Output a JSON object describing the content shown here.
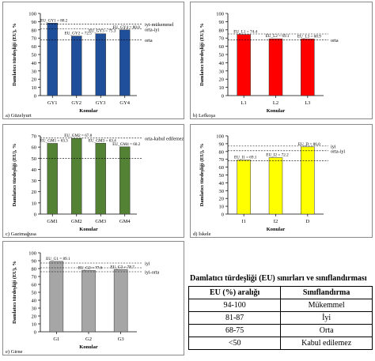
{
  "chart_data": [
    {
      "type": "bar",
      "panel_label": "a) Güzelyurt",
      "xlabel": "Konular",
      "ylabel": "Damlatıcı türdeşliği (EU),  %",
      "ylim": [
        0,
        100
      ],
      "yticks": [
        "0",
        "10",
        "20",
        "30",
        "40",
        "50",
        "60",
        "70",
        "80",
        "90",
        "100"
      ],
      "categories": [
        "GY1",
        "GY2",
        "GY3",
        "GY4"
      ],
      "values": [
        88.2,
        72.5,
        75.3,
        80.0
      ],
      "bar_color": "#1f4e9a",
      "value_labels": [
        "EU_GY1 = 88.2",
        "EU_GY2 = 72.5",
        "EU_GY3 = 75.3",
        "EU_GY4 = 80.0"
      ],
      "reference_lines": [
        {
          "value": 87,
          "label": "iyi-mükemmel"
        },
        {
          "value": 81,
          "label": "orta-iyi"
        },
        {
          "value": 68,
          "label": "orta"
        }
      ]
    },
    {
      "type": "bar",
      "panel_label": "b) Lefkoşa",
      "xlabel": "Konular",
      "ylabel": "Damlatıcı türdeşliği (EU),  %",
      "ylim": [
        0,
        100
      ],
      "yticks": [
        "0",
        "10",
        "20",
        "30",
        "40",
        "50",
        "60",
        "70",
        "80",
        "90",
        "100"
      ],
      "categories": [
        "L1",
        "L2",
        "L3"
      ],
      "values": [
        74.4,
        69.1,
        68.9
      ],
      "bar_color": "#ff0000",
      "value_labels": [
        "EU_L1 = 74.4",
        "EU_L2 = 69.1",
        "EU_L3 = 68.9"
      ],
      "reference_lines": [
        {
          "value": 75,
          "label": ""
        },
        {
          "value": 68,
          "label": "orta"
        }
      ]
    },
    {
      "type": "bar",
      "panel_label": "c) Gazimağusa",
      "xlabel": "Konular",
      "ylabel": "Damlatıcı türdeşliği (EU),  %",
      "ylim": [
        0,
        70
      ],
      "yticks": [
        "0",
        "10",
        "20",
        "30",
        "40",
        "50",
        "60",
        "70"
      ],
      "categories": [
        "GM1",
        "GM2",
        "GM3",
        "GM4"
      ],
      "values": [
        63.3,
        67.8,
        63.4,
        60.2
      ],
      "bar_color": "#548235",
      "value_labels": [
        "EU_GM1 = 63.3",
        "EU_GM2 = 67.8",
        "EU_GM3 = 63.4",
        "EU_GM4 = 60.2"
      ],
      "reference_lines": [
        {
          "value": 68,
          "label": "orta-kabul edilemez"
        },
        {
          "value": 50,
          "label": ""
        }
      ]
    },
    {
      "type": "bar",
      "panel_label": "d) İskele",
      "xlabel": "Konular",
      "ylabel": "Damlatıcı türdeşliği (EU),  %",
      "ylim": [
        0,
        100
      ],
      "yticks": [
        "0",
        "10",
        "20",
        "30",
        "40",
        "50",
        "60",
        "70",
        "80",
        "90",
        "100"
      ],
      "categories": [
        "I1",
        "I2",
        "D"
      ],
      "values": [
        69.1,
        72.2,
        86.0
      ],
      "bar_color": "#ffff00",
      "value_labels": [
        "EU_I1 = 69.1",
        "EU_I2 = 72.2",
        "EU_D = 86.0"
      ],
      "reference_lines": [
        {
          "value": 87,
          "label": "iyi"
        },
        {
          "value": 81,
          "label": "orta-iyi"
        },
        {
          "value": 68,
          "label": ""
        }
      ]
    },
    {
      "type": "bar",
      "panel_label": "e) Girne",
      "xlabel": "Konular",
      "ylabel": "Damlatıcı türdeşliği (EU),  %",
      "ylim": [
        0,
        100
      ],
      "yticks": [
        "0",
        "10",
        "20",
        "30",
        "40",
        "50",
        "60",
        "70",
        "80",
        "90",
        "100"
      ],
      "categories": [
        "G1",
        "G2",
        "G3"
      ],
      "values": [
        89.1,
        77.6,
        78.7
      ],
      "bar_color": "#a6a6a6",
      "value_labels": [
        "EU_G1 = 89.1",
        "EU_G2 = 77.6",
        "EU_G3 = 78.7"
      ],
      "reference_lines": [
        {
          "value": 87,
          "label": "iyi"
        },
        {
          "value": 81,
          "label": ""
        },
        {
          "value": 76,
          "label": "iyi-orta"
        }
      ]
    }
  ],
  "table": {
    "title": "Damlatıcı türdeşliği (EU) sınırları ve sınıflandırması",
    "headers": [
      "EU (%) aralığı",
      "Sınıflandırma"
    ],
    "rows": [
      [
        "94-100",
        "Mükemmel"
      ],
      [
        "81-87",
        "İyi"
      ],
      [
        "68-75",
        "Orta"
      ],
      [
        "<50",
        "Kabul edilemez"
      ]
    ]
  }
}
